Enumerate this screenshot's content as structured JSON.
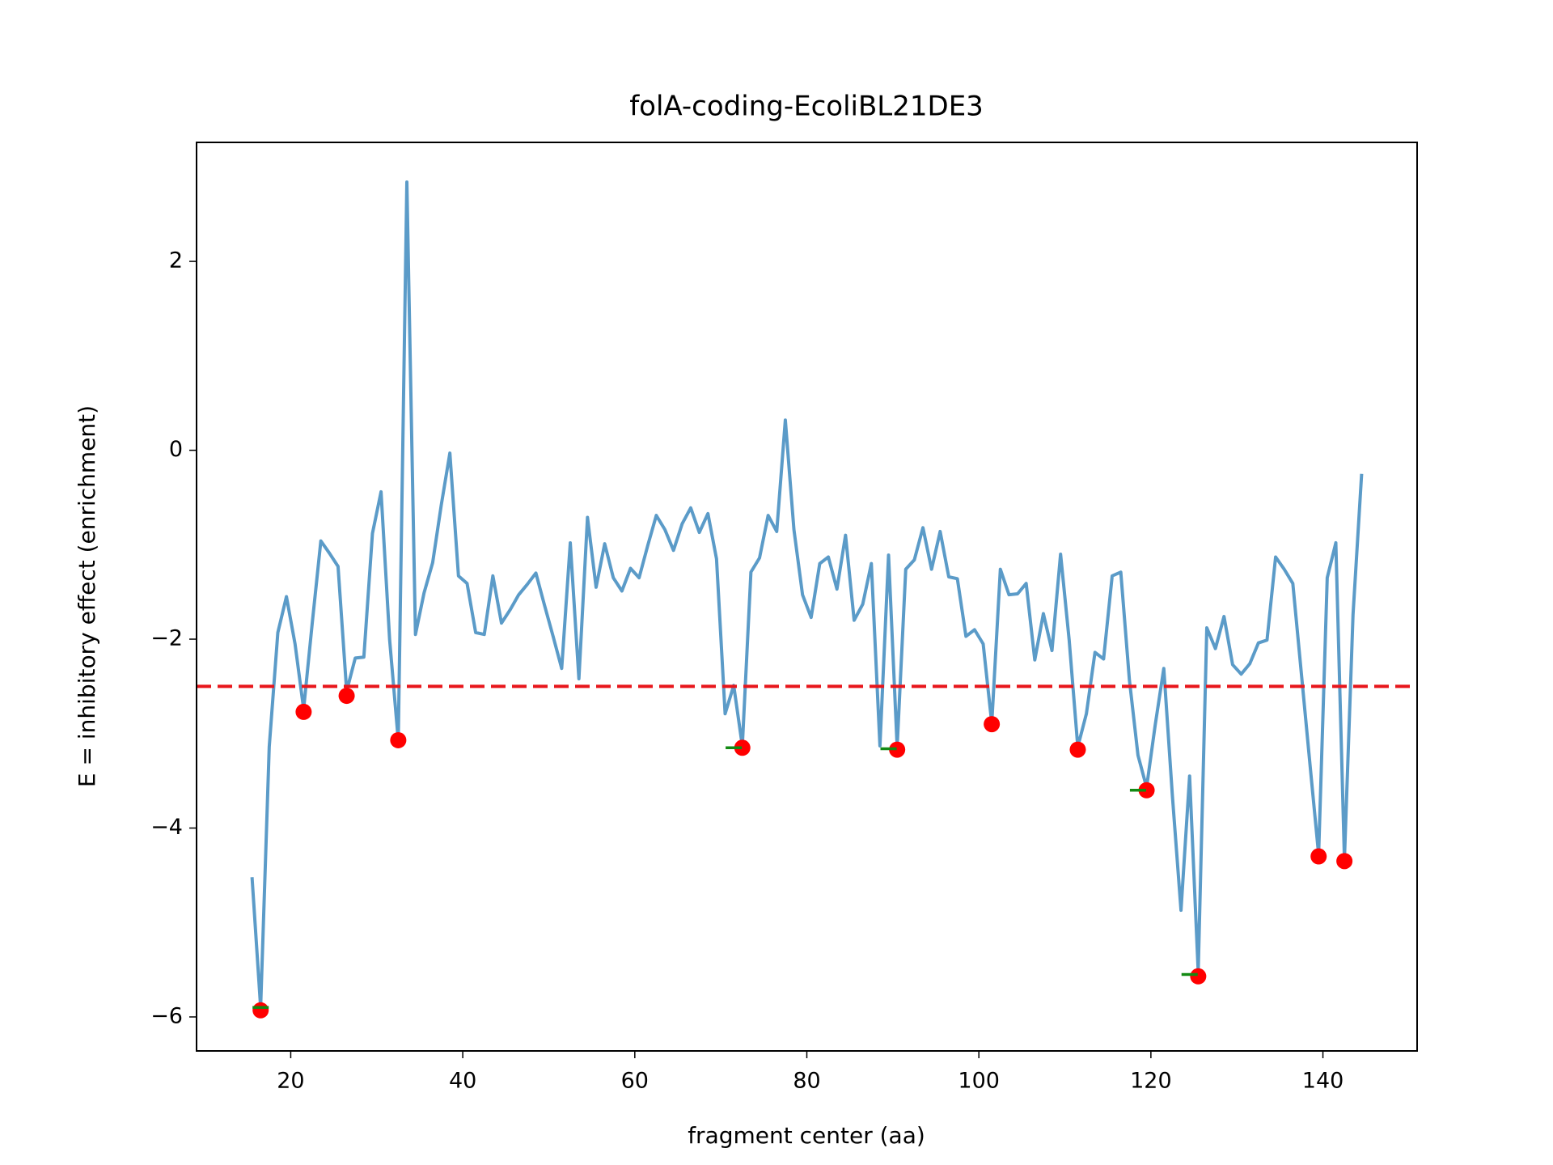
{
  "chart_data": {
    "type": "line",
    "title": "folA-coding-EcoliBL21DE3",
    "xlabel": "fragment center (aa)",
    "ylabel": "E = inhibitory effect (enrichment)",
    "xlim": [
      9.05,
      150.95
    ],
    "ylim": [
      -6.36,
      3.26
    ],
    "xticks": [
      20,
      40,
      60,
      80,
      100,
      120,
      140
    ],
    "yticks": [
      2,
      0,
      {
        "value": -2,
        "label": "−2"
      },
      {
        "value": -4,
        "label": "−4"
      },
      {
        "value": -6,
        "label": "−6"
      }
    ],
    "hline": {
      "value": -2.5,
      "color": "#e8161b",
      "style": "dashed"
    },
    "series": [
      {
        "kind": "line",
        "color": "#5b9bc8",
        "x": [
          15.5,
          16.5,
          17.5,
          18.5,
          19.5,
          20.5,
          21.5,
          22.5,
          23.5,
          24.5,
          25.5,
          26.5,
          27.5,
          28.5,
          29.5,
          30.5,
          31.5,
          32.5,
          33.5,
          34.5,
          35.5,
          36.5,
          37.5,
          38.5,
          39.5,
          40.5,
          41.5,
          42.5,
          43.5,
          44.5,
          45.5,
          46.5,
          47.5,
          48.5,
          49.5,
          50.5,
          51.5,
          52.5,
          53.5,
          54.5,
          55.5,
          56.5,
          57.5,
          58.5,
          59.5,
          60.5,
          61.5,
          62.5,
          63.5,
          64.5,
          65.5,
          66.5,
          67.5,
          68.5,
          69.5,
          70.5,
          71.5,
          72.5,
          73.5,
          74.5,
          75.5,
          76.5,
          77.5,
          78.5,
          79.5,
          80.5,
          81.5,
          82.5,
          83.5,
          84.5,
          85.5,
          86.5,
          87.5,
          88.5,
          89.5,
          90.5,
          91.5,
          92.5,
          93.5,
          94.5,
          95.5,
          96.5,
          97.5,
          98.5,
          99.5,
          100.5,
          101.5,
          102.5,
          103.5,
          104.5,
          105.5,
          106.5,
          107.5,
          108.5,
          109.5,
          110.5,
          111.5,
          112.5,
          113.5,
          114.5,
          115.5,
          116.5,
          117.5,
          118.5,
          119.5,
          120.5,
          121.5,
          122.5,
          123.5,
          124.5,
          125.5,
          126.5,
          127.5,
          128.5,
          129.5,
          130.5,
          131.5,
          132.5,
          133.5,
          134.5,
          135.5,
          136.5,
          137.5,
          138.5,
          139.5,
          140.5,
          141.5,
          142.5,
          143.5,
          144.5
        ],
        "values": [
          -4.52,
          -5.9,
          -3.14,
          -1.93,
          -1.55,
          -2.05,
          -2.74,
          -1.83,
          -0.96,
          -1.09,
          -1.23,
          -2.55,
          -2.2,
          -2.19,
          -0.88,
          -0.44,
          -2.01,
          -3.07,
          2.84,
          -1.95,
          -1.51,
          -1.19,
          -0.58,
          -0.03,
          -1.33,
          -1.41,
          -1.93,
          -1.95,
          -1.33,
          -1.83,
          -1.69,
          -1.53,
          -1.42,
          -1.3,
          -1.64,
          -1.97,
          -2.31,
          -0.98,
          -2.42,
          -0.71,
          -1.45,
          -0.99,
          -1.35,
          -1.49,
          -1.25,
          -1.35,
          -1.01,
          -0.69,
          -0.84,
          -1.06,
          -0.78,
          -0.61,
          -0.87,
          -0.67,
          -1.15,
          -2.79,
          -2.49,
          -3.13,
          -1.29,
          -1.14,
          -0.69,
          -0.86,
          0.32,
          -0.84,
          -1.53,
          -1.77,
          -1.2,
          -1.13,
          -1.47,
          -0.9,
          -1.8,
          -1.63,
          -1.2,
          -3.13,
          -1.11,
          -3.14,
          -1.26,
          -1.16,
          -0.82,
          -1.26,
          -0.86,
          -1.34,
          -1.36,
          -1.97,
          -1.9,
          -2.05,
          -2.89,
          -1.26,
          -1.53,
          -1.52,
          -1.41,
          -2.22,
          -1.73,
          -2.12,
          -1.1,
          -2.01,
          -3.14,
          -2.79,
          -2.14,
          -2.21,
          -1.33,
          -1.29,
          -2.43,
          -3.23,
          -3.57,
          -2.91,
          -2.31,
          -3.66,
          -4.87,
          -3.45,
          -5.52,
          -1.88,
          -2.1,
          -1.76,
          -2.27,
          -2.37,
          -2.26,
          -2.04,
          -2.01,
          -1.13,
          -1.26,
          -1.41,
          -2.37,
          -3.33,
          -4.28,
          -1.35,
          -0.98,
          -4.33,
          -1.74,
          -0.25
        ]
      },
      {
        "kind": "dot",
        "color": "#ff0000",
        "x": [
          16.5,
          21.5,
          26.5,
          32.5,
          72.5,
          90.5,
          101.5,
          111.5,
          119.5,
          125.5,
          139.5,
          142.5
        ],
        "values": [
          -5.93,
          -2.77,
          -2.6,
          -3.07,
          -3.15,
          -3.17,
          -2.9,
          -3.17,
          -3.6,
          -5.57,
          -4.3,
          -4.35
        ]
      },
      {
        "kind": "dash",
        "color": "#138a13",
        "x": [
          16.5,
          71.5,
          89.5,
          118.5,
          124.5
        ],
        "values": [
          -5.9,
          -3.15,
          -3.16,
          -3.6,
          -5.55
        ]
      }
    ]
  }
}
